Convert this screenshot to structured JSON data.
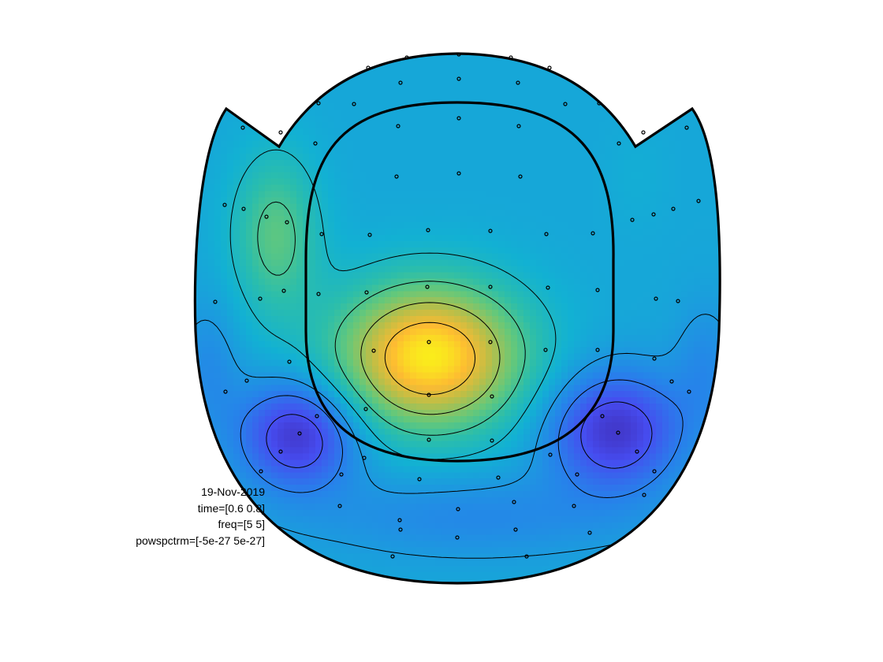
{
  "chart_data": {
    "type": "heatmap",
    "subtype": "topographic-scalp-map",
    "colormap": "parula",
    "color_range": [
      -5e-27,
      5e-27
    ],
    "outline_style": "bold black head outline with two ear flaps and inner helmet contour",
    "sensor_marker": "small open circle",
    "sources": [
      {
        "label": "central positive peak",
        "polarity": "positive",
        "relative_strength": 1.0
      },
      {
        "label": "left positive peak",
        "polarity": "positive",
        "relative_strength": 0.62
      },
      {
        "label": "right-top positive lobe",
        "polarity": "positive",
        "relative_strength": 0.2
      },
      {
        "label": "lower-left negative",
        "polarity": "negative",
        "relative_strength": 1.0
      },
      {
        "label": "lower-right negative",
        "polarity": "negative",
        "relative_strength": 1.0
      }
    ],
    "annotations": {
      "date": "19-Nov-2019",
      "time": "time=[0.6 0.8]",
      "freq": "freq=[5 5]",
      "parameter": "powspctrm=[-5e-27 5e-27]"
    }
  }
}
